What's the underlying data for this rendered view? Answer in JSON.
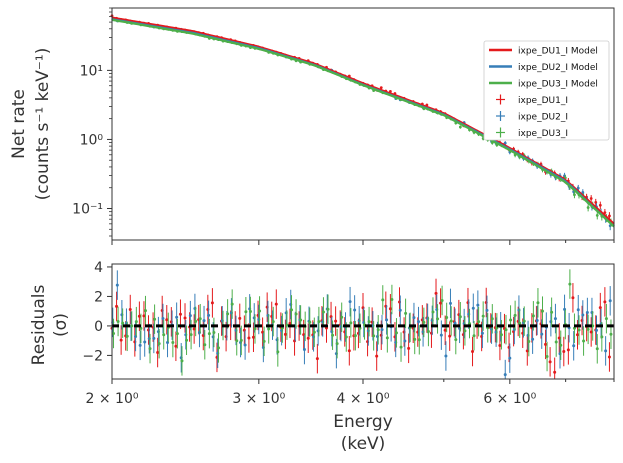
{
  "chart_data": [
    {
      "type": "line",
      "panel": "spectrum",
      "ylabel_line1": "Net rate",
      "ylabel_line2": "(counts s⁻¹ keV⁻¹)",
      "xscale": "log",
      "yscale": "log",
      "xlim": [
        2.0,
        8.0
      ],
      "ylim": [
        0.035,
        80
      ],
      "yticks": [
        {
          "value": 10,
          "label": "10¹"
        },
        {
          "value": 1,
          "label": "10⁰"
        },
        {
          "value": 0.1,
          "label": "10⁻¹"
        }
      ],
      "legend_position": "top-right",
      "series": [
        {
          "name": "ixpe_DU1_I Model",
          "kind": "model",
          "color": "#e41a1c",
          "x": [
            2.0,
            2.5,
            3.0,
            3.5,
            4.0,
            5.0,
            6.0,
            7.0,
            8.0
          ],
          "y": [
            58,
            37,
            22,
            12.5,
            6.5,
            2.4,
            0.75,
            0.26,
            0.06
          ]
        },
        {
          "name": "ixpe_DU2_I Model",
          "kind": "model",
          "color": "#377eb8",
          "x": [
            2.0,
            2.5,
            3.0,
            3.5,
            4.0,
            5.0,
            6.0,
            7.0,
            8.0
          ],
          "y": [
            55,
            35,
            21,
            12,
            6.2,
            2.3,
            0.72,
            0.25,
            0.055
          ]
        },
        {
          "name": "ixpe_DU3_I Model",
          "kind": "model",
          "color": "#4daf4a",
          "x": [
            2.0,
            2.5,
            3.0,
            3.5,
            4.0,
            5.0,
            6.0,
            7.0,
            8.0
          ],
          "y": [
            54,
            34,
            20.5,
            11.8,
            6.1,
            2.25,
            0.7,
            0.24,
            0.055
          ]
        },
        {
          "name": "ixpe_DU1_I",
          "kind": "data",
          "color": "#e41a1c"
        },
        {
          "name": "ixpe_DU2_I",
          "kind": "data",
          "color": "#377eb8"
        },
        {
          "name": "ixpe_DU3_I",
          "kind": "data",
          "color": "#4daf4a"
        }
      ]
    },
    {
      "type": "scatter",
      "panel": "residuals",
      "ylabel_line1": "Residuals",
      "ylabel_line2": "(σ)",
      "xlabel_line1": "Energy",
      "xlabel_line2": "(keV)",
      "xscale": "log",
      "xlim": [
        2.0,
        8.0
      ],
      "ylim": [
        -3.6,
        4.2
      ],
      "yticks": [
        {
          "value": 4,
          "label": "4"
        },
        {
          "value": 2,
          "label": "2"
        },
        {
          "value": 0,
          "label": "0"
        },
        {
          "value": -2,
          "label": "−2"
        }
      ],
      "xticks": [
        {
          "value": 2,
          "label": "2 × 10⁰"
        },
        {
          "value": 3,
          "label": "3 × 10⁰"
        },
        {
          "value": 4,
          "label": "4 × 10⁰"
        },
        {
          "value": 6,
          "label": "6 × 10⁰"
        }
      ],
      "zero_line": 0,
      "series": [
        {
          "name": "ixpe_DU1_I",
          "color": "#e41a1c",
          "spread": 1.0
        },
        {
          "name": "ixpe_DU2_I",
          "color": "#377eb8",
          "spread": 1.0
        },
        {
          "name": "ixpe_DU3_I",
          "color": "#4daf4a",
          "spread": 1.0
        }
      ]
    }
  ]
}
